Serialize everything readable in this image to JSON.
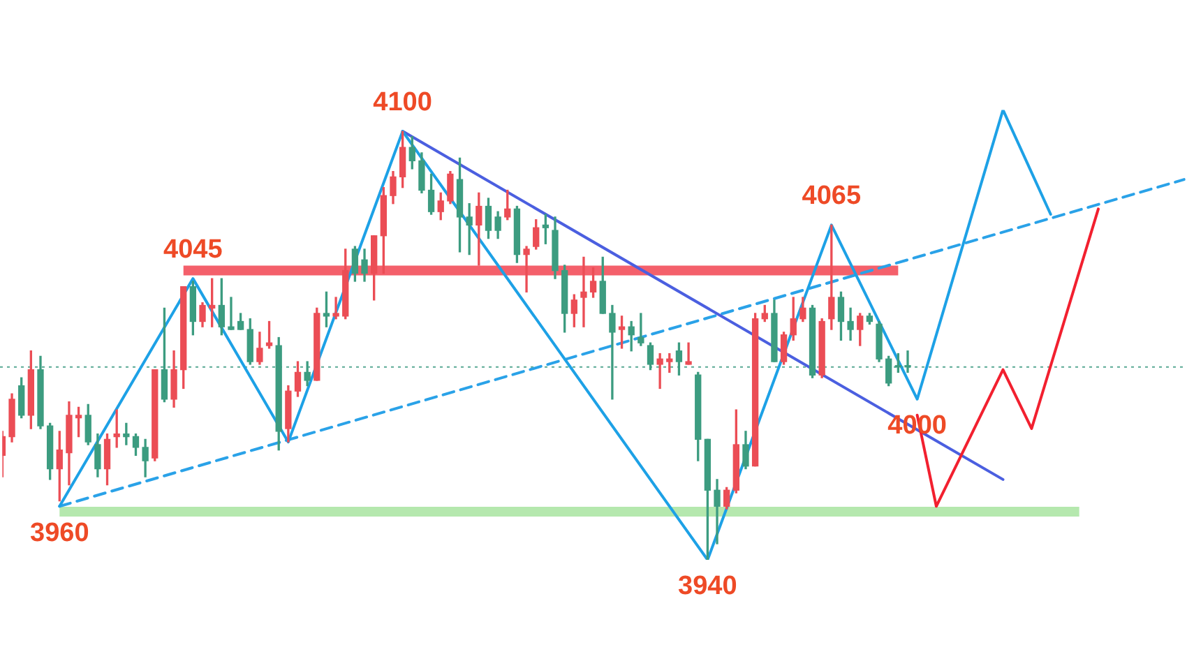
{
  "chart_data": {
    "type": "candlestick",
    "tick_labels": false,
    "marker": "none",
    "categories": [
      null,
      null,
      null,
      null,
      null,
      null,
      null,
      null,
      null,
      null,
      null,
      null,
      null,
      null,
      null,
      null,
      null,
      null,
      null,
      null,
      null,
      null,
      null,
      null,
      null,
      null,
      null,
      null,
      null,
      null,
      null,
      null,
      null,
      null,
      null,
      null,
      null,
      null,
      null,
      null,
      null,
      null,
      null,
      null,
      null,
      null,
      null,
      null,
      null,
      null,
      null,
      null,
      null,
      null,
      null,
      null,
      null,
      null,
      null,
      null,
      null,
      null,
      null,
      null,
      null,
      null,
      null,
      null,
      null,
      null,
      null,
      null,
      null,
      null,
      null,
      null,
      null,
      null,
      null,
      null,
      null,
      null,
      null,
      null,
      null,
      null,
      null,
      null,
      null,
      null,
      null,
      null,
      null,
      null,
      null,
      null,
      null,
      null,
      null,
      null,
      null,
      null,
      null,
      null,
      null,
      null,
      null,
      null,
      null,
      null,
      null,
      null,
      null,
      null,
      null,
      null,
      null,
      null,
      null,
      null,
      null,
      null,
      null,
      null,
      null
    ],
    "ohlc": [
      [
        3979,
        3988,
        3971,
        3986
      ],
      [
        3986,
        4002,
        3984,
        4000
      ],
      [
        4005,
        4008,
        3993,
        3994
      ],
      [
        3994,
        4018,
        3989,
        4011
      ],
      [
        4011,
        4016,
        3989,
        3990
      ],
      [
        3990,
        3991,
        3970,
        3974
      ],
      [
        3974,
        3988,
        3962,
        3981
      ],
      [
        3980,
        3999,
        3968,
        3994
      ],
      [
        3993,
        3997,
        3986,
        3994
      ],
      [
        3994,
        3998,
        3983,
        3984
      ],
      [
        3983,
        3987,
        3971,
        3974
      ],
      [
        3974,
        3987,
        3968,
        3985
      ],
      [
        3986,
        3996,
        3982,
        3987
      ],
      [
        3987,
        3991,
        3983,
        3986
      ],
      [
        3986,
        3987,
        3979,
        3982
      ],
      [
        3982,
        3985,
        3971,
        3977
      ],
      [
        3978,
        4011,
        3977,
        4011
      ],
      [
        4011,
        4034,
        3999,
        4000
      ],
      [
        4000,
        4018,
        3997,
        4011
      ],
      [
        4011,
        4042,
        4004,
        4042
      ],
      [
        4042,
        4044,
        4024,
        4029
      ],
      [
        4029,
        4036,
        4027,
        4035
      ],
      [
        4034,
        4045,
        4027,
        4035
      ],
      [
        4035,
        4045,
        4024,
        4027
      ],
      [
        4027,
        4038,
        4026,
        4026
      ],
      [
        4029,
        4032,
        4026,
        4026
      ],
      [
        4026,
        4030,
        4013,
        4014
      ],
      [
        4014,
        4025,
        4013,
        4019
      ],
      [
        4020,
        4029,
        4019,
        4021
      ],
      [
        4020,
        4023,
        3981,
        3988
      ],
      [
        3989,
        4005,
        3984,
        4003
      ],
      [
        4003,
        4014,
        4001,
        4010
      ],
      [
        4010,
        4014,
        4005,
        4007
      ],
      [
        4007,
        4034,
        4007,
        4032
      ],
      [
        4032,
        4040,
        4027,
        4031
      ],
      [
        4031,
        4038,
        4030,
        4032
      ],
      [
        4031,
        4056,
        4030,
        4048
      ],
      [
        4056,
        4057,
        4044,
        4047
      ],
      [
        4052,
        4056,
        4044,
        4047
      ],
      [
        4047,
        4061,
        4037,
        4061
      ],
      [
        4061,
        4079,
        4047,
        4076
      ],
      [
        4076,
        4085,
        4073,
        4083
      ],
      [
        4083,
        4100,
        4079,
        4094
      ],
      [
        4094,
        4098,
        4086,
        4089
      ],
      [
        4089,
        4092,
        4077,
        4078
      ],
      [
        4078,
        4084,
        4069,
        4070
      ],
      [
        4070,
        4077,
        4067,
        4074
      ],
      [
        4074,
        4085,
        4073,
        4084
      ],
      [
        4082,
        4090,
        4055,
        4068
      ],
      [
        4068,
        4073,
        4054,
        4065
      ],
      [
        4065,
        4077,
        4050,
        4072
      ],
      [
        4072,
        4075,
        4060,
        4063
      ],
      [
        4068,
        4070,
        4060,
        4063
      ],
      [
        4068,
        4078,
        4067,
        4071
      ],
      [
        4071,
        4072,
        4051,
        4054
      ],
      [
        4054,
        4057,
        4040,
        4056
      ],
      [
        4057,
        4067,
        4056,
        4064
      ],
      [
        4065,
        4069,
        4058,
        4064
      ],
      [
        4063,
        4068,
        4045,
        4048
      ],
      [
        4048,
        4050,
        4025,
        4032
      ],
      [
        4032,
        4039,
        4027,
        4037
      ],
      [
        4038,
        4053,
        4027,
        4040
      ],
      [
        4040,
        4049,
        4038,
        4044
      ],
      [
        4044,
        4053,
        4032,
        4032
      ],
      [
        4032,
        4035,
        4000,
        4025
      ],
      [
        4026,
        4031,
        4019,
        4027
      ],
      [
        4027,
        4029,
        4018,
        4024
      ],
      [
        4023,
        4032,
        4020,
        4021
      ],
      [
        4020,
        4021,
        4011,
        4013
      ],
      [
        4013,
        4017,
        4004,
        4015
      ],
      [
        4014,
        4017,
        4010,
        4015
      ],
      [
        4018,
        4021,
        4009,
        4014
      ],
      [
        4013,
        4021,
        4013,
        4014
      ],
      [
        4009,
        4010,
        3977,
        3985
      ],
      [
        3985,
        3985,
        3940,
        3966
      ],
      [
        3966,
        3970,
        3946,
        3960
      ],
      [
        3960,
        3967,
        3959,
        3966
      ],
      [
        3966,
        3996,
        3965,
        3983
      ],
      [
        3983,
        3988,
        3974,
        3975
      ],
      [
        3975,
        4032,
        3975,
        4030
      ],
      [
        4030,
        4035,
        4029,
        4032
      ],
      [
        4032,
        4037,
        4014,
        4014
      ],
      [
        4014,
        4025,
        4013,
        4024
      ],
      [
        4024,
        4038,
        4022,
        4030
      ],
      [
        4030,
        4038,
        4029,
        4034
      ],
      [
        4034,
        4035,
        4008,
        4009
      ],
      [
        4009,
        4030,
        4008,
        4029
      ],
      [
        4030,
        4065,
        4026,
        4038
      ],
      [
        4038,
        4040,
        4022,
        4029
      ],
      [
        4029,
        4034,
        4022,
        4026
      ],
      [
        4026,
        4032,
        4020,
        4031
      ],
      [
        4031,
        4032,
        4028,
        4029
      ],
      [
        4028,
        4029,
        4014,
        4015
      ],
      [
        4015,
        4016,
        4005,
        4006
      ],
      [
        4012,
        4017,
        4010,
        4012
      ],
      [
        4012,
        4018,
        4010,
        4012
      ],
      null,
      null,
      null,
      null,
      null,
      null,
      null,
      null,
      null,
      null,
      null,
      null,
      null,
      null,
      null,
      null,
      null,
      null,
      null,
      null,
      null,
      null,
      null,
      null,
      null,
      null,
      null,
      null,
      null
    ],
    "colors": [
      "#eb4d55",
      "#eb4d55",
      "#3c9c80",
      "#eb4d55",
      "#3c9c80",
      "#3c9c80",
      "#eb4d55",
      "#eb4d55",
      "#eb4d55",
      "#3c9c80",
      "#3c9c80",
      "#eb4d55",
      "#eb4d55",
      "#3c9c80",
      "#3c9c80",
      "#3c9c80",
      "#eb4d55",
      "#3c9c80",
      "#eb4d55",
      "#eb4d55",
      "#3c9c80",
      "#eb4d55",
      "#eb4d55",
      "#3c9c80",
      "#3c9c80",
      "#3c9c80",
      "#3c9c80",
      "#eb4d55",
      "#eb4d55",
      "#3c9c80",
      "#eb4d55",
      "#eb4d55",
      "#3c9c80",
      "#eb4d55",
      "#3c9c80",
      "#eb4d55",
      "#eb4d55",
      "#3c9c80",
      "#3c9c80",
      "#eb4d55",
      "#eb4d55",
      "#eb4d55",
      "#eb4d55",
      "#3c9c80",
      "#3c9c80",
      "#3c9c80",
      "#eb4d55",
      "#eb4d55",
      "#3c9c80",
      "#3c9c80",
      "#eb4d55",
      "#3c9c80",
      "#3c9c80",
      "#eb4d55",
      "#3c9c80",
      "#eb4d55",
      "#eb4d55",
      "#3c9c80",
      "#3c9c80",
      "#3c9c80",
      "#eb4d55",
      "#eb4d55",
      "#eb4d55",
      "#3c9c80",
      "#3c9c80",
      "#eb4d55",
      "#3c9c80",
      "#3c9c80",
      "#3c9c80",
      "#eb4d55",
      "#eb4d55",
      "#3c9c80",
      "#eb4d55",
      "#3c9c80",
      "#3c9c80",
      "#3c9c80",
      "#eb4d55",
      "#eb4d55",
      "#3c9c80",
      "#eb4d55",
      "#eb4d55",
      "#3c9c80",
      "#eb4d55",
      "#eb4d55",
      "#eb4d55",
      "#3c9c80",
      "#eb4d55",
      "#eb4d55",
      "#3c9c80",
      "#3c9c80",
      "#eb4d55",
      "#3c9c80",
      "#3c9c80",
      "#3c9c80",
      "#3c9c80",
      "#3c9c80",
      null,
      null,
      null,
      null,
      null,
      null,
      null,
      null,
      null,
      null,
      null,
      null,
      null,
      null,
      null,
      null,
      null,
      null,
      null,
      null,
      null,
      null,
      null,
      null,
      null,
      null,
      null,
      null,
      null
    ],
    "series": [
      {
        "type": "line",
        "color": "#b5e8ae",
        "values": [
          null,
          null,
          null,
          null,
          null,
          null,
          3958,
          null,
          null,
          null,
          null,
          null,
          null,
          null,
          null,
          null,
          null,
          null,
          null,
          null,
          null,
          null,
          null,
          null,
          null,
          null,
          null,
          null,
          null,
          null,
          null,
          null,
          null,
          null,
          null,
          null,
          null,
          null,
          null,
          null,
          null,
          null,
          null,
          null,
          null,
          null,
          null,
          null,
          null,
          null,
          null,
          null,
          null,
          null,
          null,
          null,
          null,
          null,
          null,
          null,
          null,
          null,
          null,
          null,
          null,
          null,
          null,
          null,
          null,
          null,
          null,
          null,
          null,
          null,
          null,
          null,
          null,
          null,
          null,
          null,
          null,
          null,
          null,
          null,
          null,
          null,
          null,
          null,
          null,
          null,
          null,
          null,
          null,
          null,
          null,
          null,
          null,
          null,
          null,
          null,
          null,
          null,
          null,
          null,
          null,
          null,
          null,
          null,
          null,
          null,
          null,
          null,
          null,
          3958,
          null,
          null,
          null,
          null,
          null,
          null,
          null,
          null,
          null,
          null,
          null
        ]
      },
      {
        "type": "line",
        "color": "#f4606b",
        "values": [
          null,
          null,
          null,
          null,
          null,
          null,
          null,
          null,
          null,
          null,
          null,
          null,
          null,
          null,
          null,
          null,
          null,
          null,
          null,
          4048,
          null,
          null,
          null,
          null,
          null,
          null,
          null,
          null,
          null,
          null,
          null,
          null,
          null,
          null,
          null,
          null,
          null,
          null,
          null,
          null,
          null,
          null,
          null,
          null,
          null,
          null,
          null,
          null,
          null,
          null,
          null,
          null,
          null,
          null,
          null,
          null,
          null,
          null,
          null,
          null,
          null,
          null,
          null,
          null,
          null,
          null,
          null,
          null,
          null,
          null,
          null,
          null,
          null,
          null,
          null,
          null,
          null,
          null,
          null,
          null,
          null,
          null,
          null,
          null,
          null,
          null,
          null,
          null,
          null,
          null,
          null,
          null,
          null,
          null,
          4048,
          null,
          null,
          null,
          null,
          null,
          null,
          null,
          null,
          null,
          null,
          null,
          null,
          null,
          null,
          null,
          null,
          null,
          null,
          null,
          null,
          null,
          null,
          null,
          null,
          null,
          null,
          null,
          null,
          null,
          null
        ]
      },
      {
        "type": "line",
        "color": "#2aa2e8",
        "line_style": "dashed",
        "values": [
          null,
          null,
          null,
          null,
          null,
          null,
          3960,
          null,
          null,
          null,
          null,
          null,
          null,
          null,
          null,
          null,
          null,
          null,
          null,
          null,
          null,
          null,
          null,
          null,
          null,
          null,
          null,
          null,
          null,
          null,
          null,
          null,
          null,
          null,
          null,
          null,
          null,
          null,
          null,
          null,
          null,
          null,
          null,
          null,
          null,
          null,
          null,
          null,
          null,
          null,
          null,
          null,
          null,
          null,
          null,
          null,
          null,
          null,
          null,
          null,
          null,
          null,
          null,
          null,
          null,
          null,
          null,
          null,
          null,
          null,
          null,
          null,
          null,
          null,
          null,
          null,
          null,
          null,
          null,
          null,
          null,
          null,
          null,
          null,
          null,
          null,
          null,
          null,
          null,
          null,
          null,
          null,
          null,
          null,
          null,
          null,
          null,
          null,
          null,
          null,
          null,
          null,
          null,
          null,
          null,
          null,
          null,
          null,
          null,
          null,
          null,
          null,
          null,
          null,
          null,
          null,
          null,
          null,
          null,
          null,
          null,
          null,
          null,
          null,
          4082
        ]
      },
      {
        "type": "line",
        "color": "#4b5fe0",
        "values": [
          null,
          null,
          null,
          null,
          null,
          null,
          null,
          null,
          null,
          null,
          null,
          null,
          null,
          null,
          null,
          null,
          null,
          null,
          null,
          null,
          null,
          null,
          null,
          null,
          null,
          null,
          null,
          null,
          null,
          null,
          null,
          null,
          null,
          null,
          null,
          null,
          null,
          null,
          null,
          null,
          null,
          null,
          4100,
          null,
          null,
          null,
          null,
          null,
          null,
          null,
          null,
          null,
          null,
          null,
          null,
          null,
          null,
          null,
          null,
          null,
          null,
          null,
          null,
          null,
          null,
          null,
          null,
          null,
          null,
          null,
          null,
          null,
          null,
          null,
          null,
          null,
          null,
          null,
          null,
          null,
          null,
          null,
          null,
          null,
          null,
          null,
          null,
          null,
          null,
          null,
          null,
          null,
          null,
          null,
          null,
          null,
          null,
          null,
          null,
          null,
          null,
          null,
          null,
          null,
          null,
          3970,
          null,
          null,
          null,
          null,
          null,
          null,
          null,
          null,
          null,
          null,
          null,
          null,
          null,
          null,
          null,
          null,
          null,
          null,
          null
        ]
      },
      {
        "type": "line",
        "color": "#1da1e6",
        "values": [
          null,
          null,
          null,
          null,
          null,
          null,
          3960,
          null,
          null,
          null,
          null,
          null,
          null,
          null,
          null,
          null,
          null,
          null,
          null,
          null,
          4045,
          null,
          null,
          null,
          null,
          null,
          null,
          null,
          null,
          null,
          3984,
          null,
          null,
          null,
          null,
          null,
          null,
          null,
          null,
          null,
          null,
          null,
          4100,
          null,
          null,
          null,
          null,
          null,
          null,
          null,
          null,
          null,
          null,
          null,
          null,
          null,
          null,
          null,
          null,
          null,
          null,
          null,
          null,
          null,
          null,
          null,
          null,
          null,
          null,
          null,
          null,
          null,
          null,
          null,
          3940,
          null,
          null,
          null,
          null,
          null,
          null,
          null,
          null,
          null,
          null,
          null,
          null,
          4065,
          null,
          null,
          null,
          null,
          null,
          null,
          null,
          null,
          4000,
          null,
          null,
          null,
          null,
          null,
          null,
          null,
          null,
          4108,
          null,
          null,
          null,
          null,
          4069,
          null,
          null,
          null,
          null,
          null,
          null,
          null,
          null,
          null,
          null,
          null,
          null,
          null,
          null
        ]
      },
      {
        "type": "line",
        "color": "#f2202f",
        "values": [
          null,
          null,
          null,
          null,
          null,
          null,
          null,
          null,
          null,
          null,
          null,
          null,
          null,
          null,
          null,
          null,
          null,
          null,
          null,
          null,
          null,
          null,
          null,
          null,
          null,
          null,
          null,
          null,
          null,
          null,
          null,
          null,
          null,
          null,
          null,
          null,
          null,
          null,
          null,
          null,
          null,
          null,
          null,
          null,
          null,
          null,
          null,
          null,
          null,
          null,
          null,
          null,
          null,
          null,
          null,
          null,
          null,
          null,
          null,
          null,
          null,
          null,
          null,
          null,
          null,
          null,
          null,
          null,
          null,
          null,
          null,
          null,
          null,
          null,
          null,
          null,
          null,
          null,
          null,
          null,
          null,
          null,
          null,
          null,
          null,
          null,
          null,
          null,
          null,
          null,
          null,
          null,
          null,
          null,
          null,
          null,
          3994,
          null,
          3960,
          null,
          null,
          null,
          null,
          null,
          null,
          4011,
          null,
          null,
          3989,
          null,
          null,
          null,
          null,
          null,
          null,
          4071,
          null,
          null,
          null,
          null,
          null,
          null,
          null,
          null,
          null
        ]
      }
    ],
    "ref_lines": [
      {
        "axis": "y",
        "value": 4012,
        "color": "#5aa995",
        "line_style": "dotted"
      }
    ],
    "annotations": [
      {
        "text": "3960",
        "y": 3960
      },
      {
        "text": "4045",
        "y": 4045
      },
      {
        "text": "4100",
        "y": 4100
      },
      {
        "text": "3940",
        "y": 3940
      },
      {
        "text": "4065",
        "y": 4065
      },
      {
        "text": "4000",
        "y": 4000
      }
    ]
  }
}
